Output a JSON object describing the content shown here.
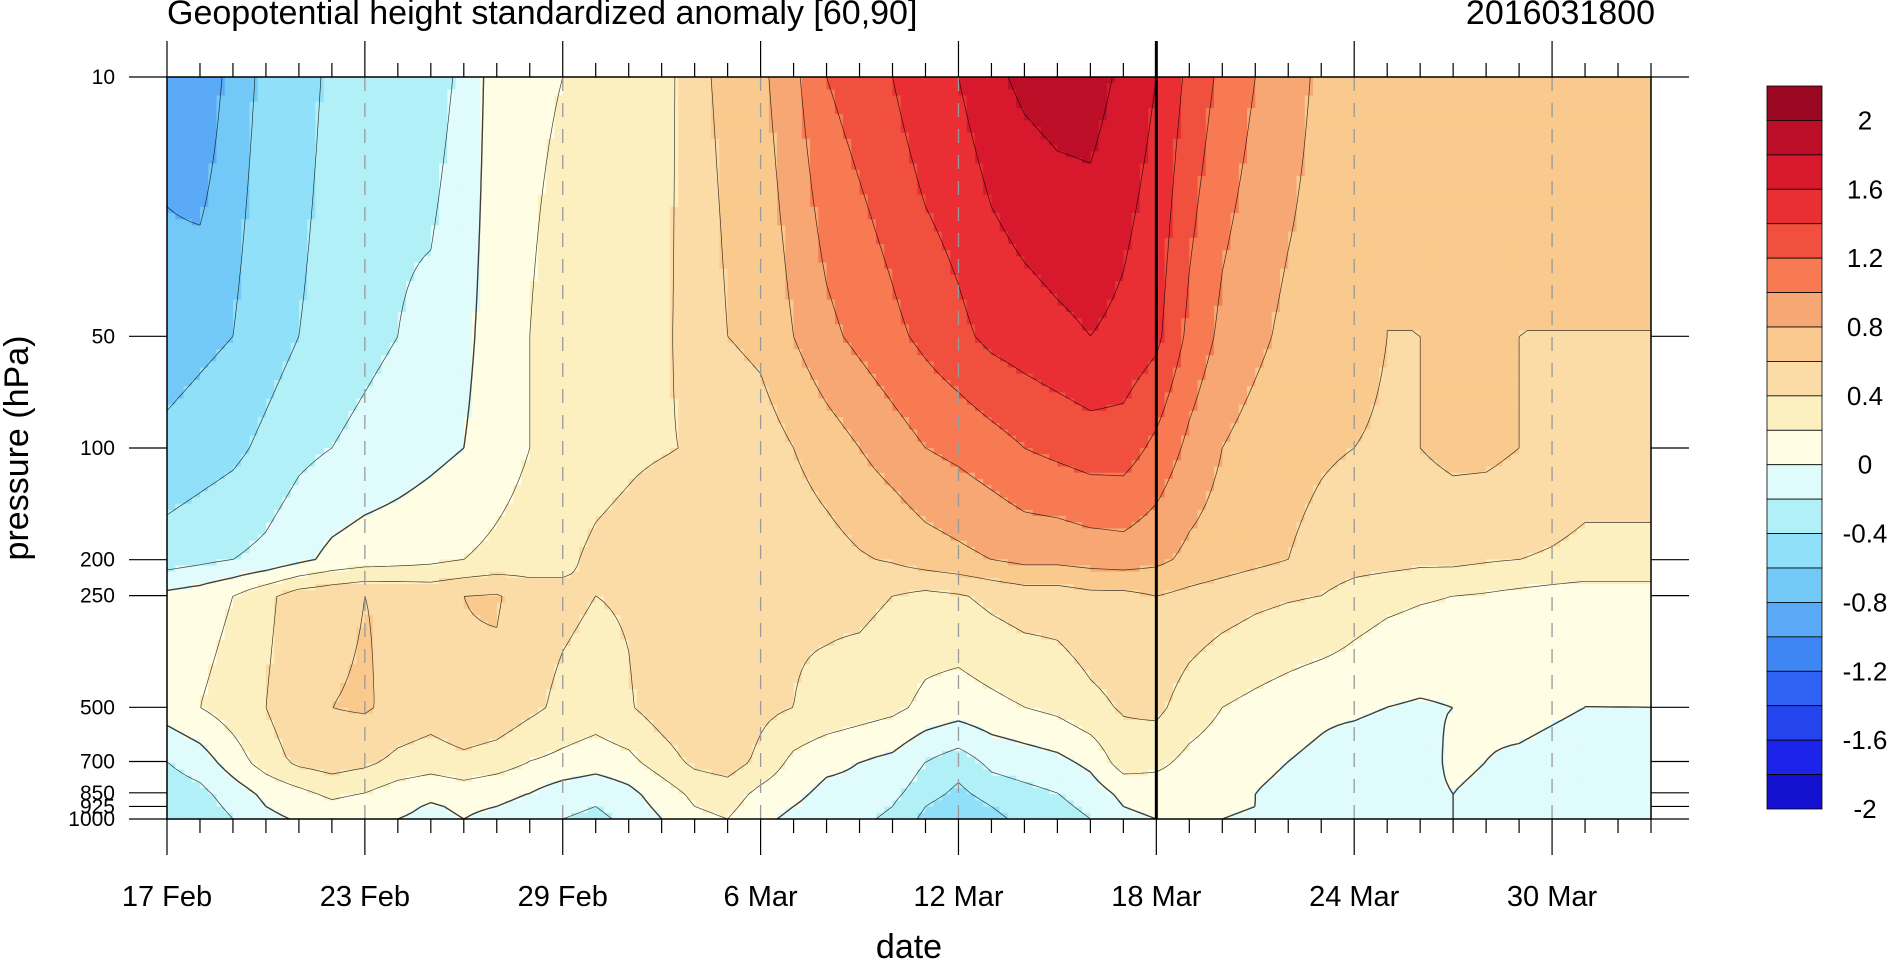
{
  "title_left": "Geopotential height standardized anomaly [60,90]",
  "title_right": "2016031800",
  "chart_data": {
    "type": "heatmap",
    "title": "Geopotential height standardized anomaly [60,90]",
    "subtitle": "2016031800",
    "xlabel": "date",
    "ylabel": "pressure (hPa)",
    "x_tick_labels": [
      "17 Feb",
      "23 Feb",
      "29 Feb",
      "6 Mar",
      "12 Mar",
      "18 Mar",
      "24 Mar",
      "30 Mar"
    ],
    "x_tick_days": [
      0,
      6,
      12,
      18,
      24,
      30,
      36,
      42
    ],
    "x_range_days": [
      0,
      45
    ],
    "y_levels": [
      10,
      50,
      100,
      200,
      250,
      500,
      700,
      850,
      925,
      1000
    ],
    "y_tick_labels": [
      "10",
      "50",
      "100",
      "200",
      "250",
      "500",
      "700",
      "850",
      "925",
      "1000"
    ],
    "y_scale": "log, inverted",
    "y_range": [
      10,
      1000
    ],
    "marked_date": "18 Mar",
    "dates": [
      "17 Feb",
      "18 Feb",
      "19 Feb",
      "20 Feb",
      "21 Feb",
      "22 Feb",
      "23 Feb",
      "24 Feb",
      "25 Feb",
      "26 Feb",
      "27 Feb",
      "28 Feb",
      "29 Feb",
      "1 Mar",
      "2 Mar",
      "3 Mar",
      "4 Mar",
      "5 Mar",
      "6 Mar",
      "7 Mar",
      "8 Mar",
      "9 Mar",
      "10 Mar",
      "11 Mar",
      "12 Mar",
      "13 Mar",
      "14 Mar",
      "15 Mar",
      "16 Mar",
      "17 Mar",
      "18 Mar",
      "19 Mar",
      "20 Mar",
      "21 Mar",
      "22 Mar",
      "23 Mar",
      "24 Mar",
      "25 Mar",
      "26 Mar",
      "27 Mar",
      "28 Mar",
      "29 Mar",
      "30 Mar",
      "31 Mar",
      "1 Apr",
      "2 Apr"
    ],
    "values": [
      [
        -0.9,
        -1.0,
        -0.7,
        -0.55,
        -0.5,
        -0.35,
        -0.3,
        -0.25,
        -0.3,
        -0.15,
        0.1,
        0.15,
        0.2,
        0.2,
        0.25,
        0.3,
        0.55,
        0.65,
        0.75,
        0.95,
        1.2,
        1.3,
        1.4,
        1.55,
        1.6,
        1.75,
        1.85,
        1.9,
        1.9,
        1.75,
        1.6,
        1.35,
        1.15,
        1.0,
        0.9,
        0.75,
        0.65,
        0.6,
        0.6,
        0.6,
        0.6,
        0.6,
        0.6,
        0.6,
        0.6,
        0.6
      ],
      [
        -0.7,
        -0.65,
        -0.6,
        -0.5,
        -0.4,
        -0.3,
        -0.25,
        -0.2,
        -0.15,
        -0.05,
        0.1,
        0.2,
        0.3,
        0.3,
        0.3,
        0.35,
        0.5,
        0.6,
        0.65,
        0.8,
        0.95,
        1.05,
        1.15,
        1.25,
        1.35,
        1.45,
        1.5,
        1.55,
        1.6,
        1.55,
        1.45,
        1.15,
        0.95,
        0.85,
        0.75,
        0.7,
        0.65,
        0.6,
        0.6,
        0.6,
        0.6,
        0.6,
        0.6,
        0.6,
        0.6,
        0.6
      ],
      [
        -0.55,
        -0.5,
        -0.45,
        -0.35,
        -0.25,
        -0.2,
        -0.15,
        -0.1,
        -0.05,
        0.0,
        0.1,
        0.2,
        0.25,
        0.3,
        0.35,
        0.38,
        0.42,
        0.45,
        0.5,
        0.6,
        0.7,
        0.8,
        0.9,
        1.0,
        1.05,
        1.12,
        1.2,
        1.25,
        1.3,
        1.3,
        1.15,
        0.95,
        0.8,
        0.72,
        0.65,
        0.62,
        0.6,
        0.58,
        0.6,
        0.65,
        0.65,
        0.6,
        0.55,
        0.5,
        0.5,
        0.5
      ],
      [
        -0.3,
        -0.25,
        -0.2,
        -0.15,
        -0.05,
        0.05,
        0.1,
        0.12,
        0.15,
        0.2,
        0.25,
        0.3,
        0.35,
        0.45,
        0.5,
        0.6,
        0.6,
        0.5,
        0.45,
        0.48,
        0.52,
        0.58,
        0.62,
        0.7,
        0.75,
        0.8,
        0.85,
        0.85,
        0.88,
        0.9,
        0.85,
        0.75,
        0.7,
        0.65,
        0.6,
        0.55,
        0.5,
        0.48,
        0.45,
        0.45,
        0.42,
        0.4,
        0.38,
        0.35,
        0.35,
        0.35
      ],
      [
        0.05,
        0.1,
        0.2,
        0.35,
        0.5,
        0.55,
        0.6,
        0.58,
        0.55,
        0.6,
        0.62,
        0.5,
        0.45,
        0.4,
        0.42,
        0.5,
        0.55,
        0.5,
        0.4,
        0.42,
        0.44,
        0.45,
        0.4,
        0.35,
        0.38,
        0.45,
        0.5,
        0.5,
        0.55,
        0.55,
        0.6,
        0.55,
        0.5,
        0.45,
        0.42,
        0.4,
        0.3,
        0.25,
        0.22,
        0.2,
        0.18,
        0.15,
        0.12,
        0.1,
        0.1,
        0.1
      ],
      [
        0.1,
        0.2,
        0.3,
        0.4,
        0.55,
        0.6,
        0.62,
        0.55,
        0.5,
        0.58,
        0.55,
        0.45,
        0.35,
        0.3,
        0.38,
        0.5,
        0.58,
        0.55,
        0.45,
        0.4,
        0.35,
        0.3,
        0.25,
        0.15,
        0.1,
        0.15,
        0.2,
        0.25,
        0.35,
        0.42,
        0.45,
        0.3,
        0.2,
        0.15,
        0.1,
        0.05,
        0.05,
        0.0,
        -0.02,
        0.0,
        0.05,
        0.1,
        0.05,
        0.0,
        0.0,
        0.0
      ],
      [
        -0.2,
        -0.1,
        0.1,
        0.3,
        0.45,
        0.5,
        0.45,
        0.35,
        0.3,
        0.35,
        0.3,
        0.2,
        0.15,
        0.1,
        0.15,
        0.3,
        0.45,
        0.5,
        0.35,
        0.15,
        0.05,
        0.0,
        -0.05,
        -0.2,
        -0.3,
        -0.15,
        -0.1,
        -0.05,
        0.05,
        0.3,
        0.25,
        0.15,
        0.1,
        0.05,
        0.0,
        -0.05,
        -0.15,
        -0.2,
        -0.1,
        0.05,
        0.0,
        -0.05,
        -0.1,
        -0.15,
        -0.1,
        -0.05
      ],
      [
        -0.3,
        -0.25,
        -0.1,
        0.05,
        0.15,
        0.25,
        0.2,
        0.1,
        0.05,
        0.1,
        0.05,
        0.0,
        -0.1,
        -0.15,
        -0.05,
        0.1,
        0.25,
        0.3,
        0.15,
        0.05,
        -0.05,
        -0.05,
        -0.15,
        -0.3,
        -0.45,
        -0.3,
        -0.25,
        -0.2,
        -0.1,
        0.05,
        0.1,
        0.1,
        0.05,
        0.0,
        -0.05,
        -0.1,
        -0.15,
        -0.1,
        -0.05,
        0.0,
        -0.05,
        -0.1,
        -0.1,
        -0.1,
        -0.05,
        -0.05
      ],
      [
        -0.35,
        -0.3,
        -0.15,
        0.0,
        0.08,
        0.15,
        0.1,
        0.05,
        -0.02,
        0.03,
        0.0,
        -0.05,
        -0.15,
        -0.2,
        -0.1,
        0.05,
        0.2,
        0.25,
        0.1,
        0.0,
        -0.08,
        -0.1,
        -0.2,
        -0.4,
        -0.55,
        -0.4,
        -0.3,
        -0.25,
        -0.15,
        0.0,
        0.05,
        0.05,
        0.02,
        0.0,
        -0.05,
        -0.1,
        -0.15,
        -0.1,
        -0.05,
        0.0,
        -0.05,
        -0.1,
        -0.1,
        -0.1,
        -0.05,
        -0.05
      ],
      [
        -0.4,
        -0.35,
        -0.2,
        -0.05,
        0.02,
        0.1,
        0.05,
        0.0,
        -0.05,
        0.0,
        -0.05,
        -0.1,
        -0.2,
        -0.25,
        -0.15,
        0.0,
        0.15,
        0.2,
        0.05,
        -0.05,
        -0.1,
        -0.15,
        -0.25,
        -0.45,
        -0.6,
        -0.45,
        -0.35,
        -0.3,
        -0.2,
        -0.05,
        0.0,
        0.0,
        0.0,
        -0.02,
        -0.05,
        -0.1,
        -0.15,
        -0.1,
        -0.05,
        0.0,
        -0.05,
        -0.1,
        -0.1,
        -0.1,
        -0.05,
        -0.05
      ]
    ],
    "contour_levels": [
      -2.0,
      -1.8,
      -1.6,
      -1.4,
      -1.2,
      -1.0,
      -0.8,
      -0.6,
      -0.4,
      -0.2,
      0.0,
      0.2,
      0.4,
      0.6,
      0.8,
      1.0,
      1.2,
      1.4,
      1.6,
      1.8,
      2.0
    ],
    "colorbar_labels": [
      "2",
      "1.6",
      "1.2",
      "0.8",
      "0.4",
      "0",
      "-0.4",
      "-0.8",
      "-1.2",
      "-1.6",
      "-2"
    ],
    "colorbar_colors": [
      "#1410d0",
      "#1d24ea",
      "#2444ee",
      "#2d62f2",
      "#3f86f5",
      "#5aaaf8",
      "#72c9f8",
      "#8fe0f8",
      "#b2f0f8",
      "#e0fbfc",
      "#fffde4",
      "#fdf0c0",
      "#fbdca6",
      "#f9c98d",
      "#f7a773",
      "#f77a52",
      "#f2503f",
      "#ea2f34",
      "#d8182c",
      "#bd0e28",
      "#9a0720"
    ],
    "grid": "dashed vertical lines at date ticks"
  }
}
